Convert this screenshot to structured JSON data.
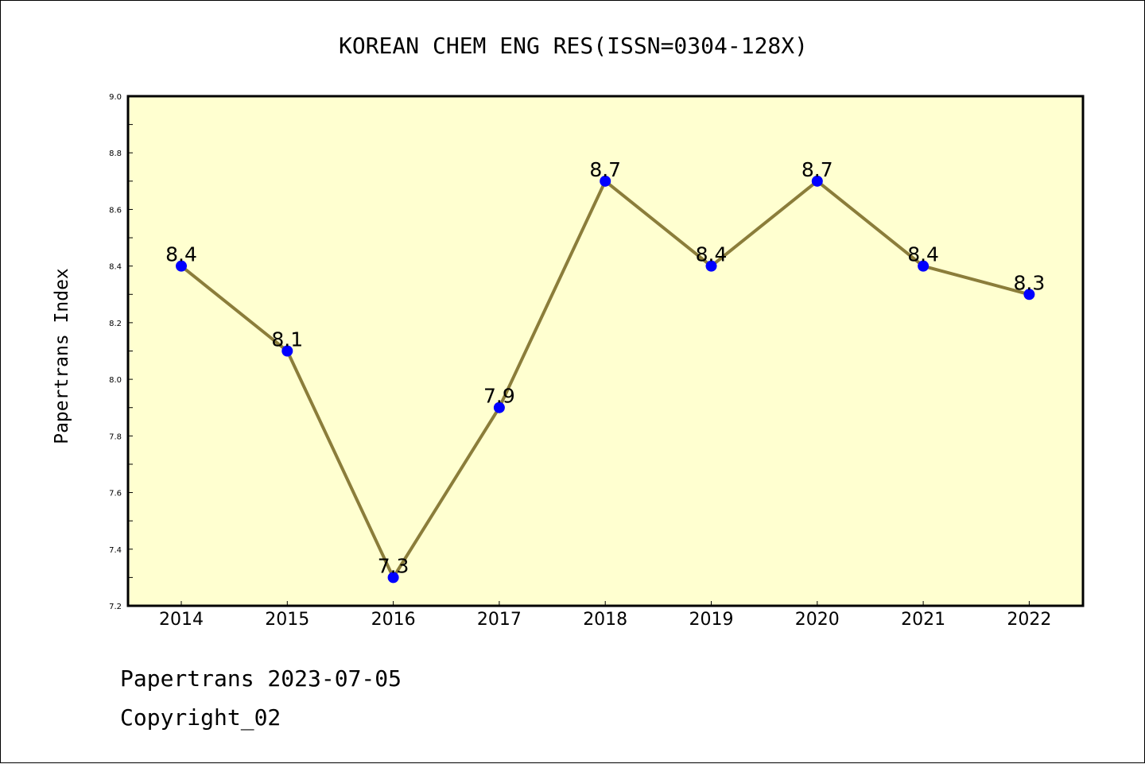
{
  "chart_data": {
    "type": "line",
    "title": "KOREAN CHEM ENG RES(ISSN=0304-128X)",
    "ylabel": "Papertrans Index",
    "xlabel": "",
    "categories": [
      "2014",
      "2015",
      "2016",
      "2017",
      "2018",
      "2019",
      "2020",
      "2021",
      "2022"
    ],
    "series": [
      {
        "values": [
          8.4,
          8.1,
          7.3,
          7.9,
          8.7,
          8.4,
          8.7,
          8.4,
          8.3
        ]
      }
    ],
    "data_labels": [
      "8.4",
      "8.1",
      "7.3",
      "7.9",
      "8.7",
      "8.4",
      "8.7",
      "8.4",
      "8.3"
    ],
    "ylim": [
      7.2,
      9.0
    ],
    "yticks": [
      "7.2",
      "7.4",
      "7.6",
      "7.8",
      "8.0",
      "8.2",
      "8.4",
      "8.6",
      "8.8",
      "9.0"
    ],
    "grid": false,
    "legend": "none",
    "colors": {
      "plot_background": "#FFFFD0",
      "line": "#8B7D3A",
      "marker": "#0000FF"
    }
  },
  "footer": {
    "source": "Papertrans 2023-07-05",
    "copyright": "Copyright_02"
  }
}
